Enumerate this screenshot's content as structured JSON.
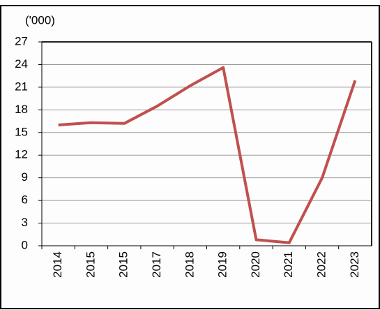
{
  "chart_data": {
    "type": "line",
    "y_unit_label": "('000)",
    "categories": [
      "2014",
      "2015",
      "2015",
      "2017",
      "2018",
      "2019",
      "2020",
      "2021",
      "2022",
      "2023"
    ],
    "series": [
      {
        "color": "#c0504d",
        "values": [
          16.0,
          16.3,
          16.2,
          18.5,
          21.2,
          23.6,
          0.8,
          0.4,
          9.0,
          21.9
        ]
      }
    ],
    "ylim": [
      0,
      27
    ],
    "yticks": [
      0,
      3,
      6,
      9,
      12,
      15,
      18,
      21,
      24,
      27
    ],
    "grid": true
  }
}
